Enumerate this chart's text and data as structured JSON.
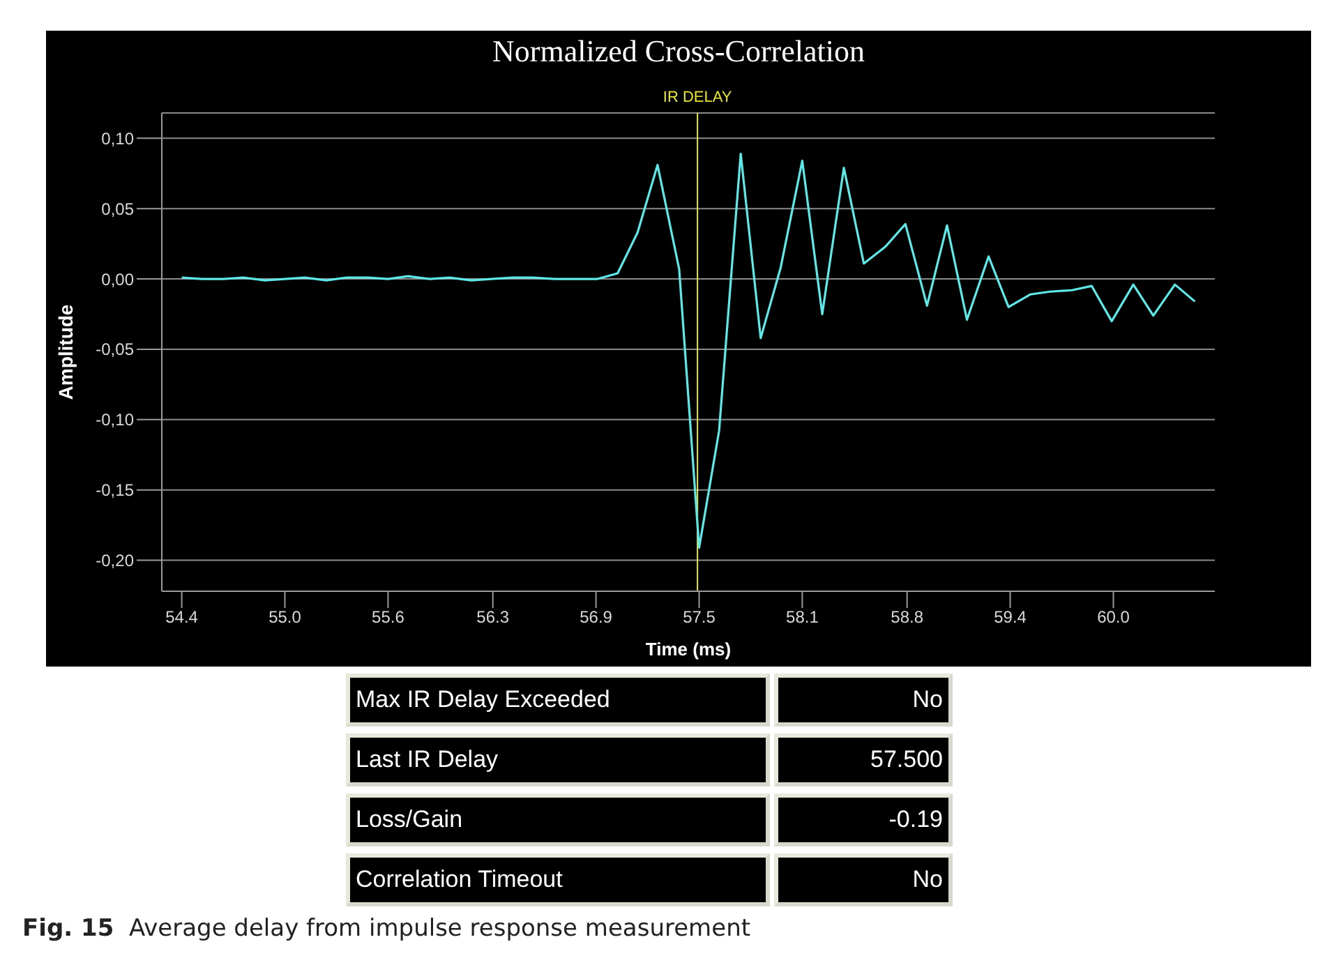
{
  "chart_data": {
    "type": "line",
    "title": "Normalized Cross-Correlation",
    "xlabel": "Time (ms)",
    "ylabel": "Amplitude",
    "x": [
      54.4,
      54.52,
      54.65,
      54.77,
      54.9,
      55.02,
      55.14,
      55.27,
      55.39,
      55.52,
      55.64,
      55.76,
      55.89,
      56.01,
      56.14,
      56.26,
      56.39,
      56.51,
      56.64,
      56.76,
      56.9,
      57.02,
      57.14,
      57.26,
      57.39,
      57.51,
      57.63,
      57.76,
      57.88,
      58.0,
      58.13,
      58.25,
      58.38,
      58.5,
      58.63,
      58.75,
      58.88,
      59.0,
      59.12,
      59.25,
      59.37,
      59.5,
      59.62,
      59.75,
      59.87,
      59.99,
      60.12,
      60.24,
      60.37,
      60.49
    ],
    "series": [
      {
        "color": "#5ee8e8",
        "values": [
          0.001,
          0,
          0,
          0.001,
          -0.001,
          0,
          0.001,
          -0.001,
          0.001,
          0.001,
          0,
          0.002,
          0,
          0.001,
          -0.001,
          0,
          0.001,
          0.001,
          0,
          0,
          0,
          0.004,
          0.033,
          0.081,
          0.007,
          -0.191,
          -0.108,
          0.089,
          -0.042,
          0.008,
          0.084,
          -0.025,
          0.079,
          0.011,
          0.023,
          0.039,
          -0.019,
          0.038,
          -0.029,
          0.016,
          -0.02,
          -0.011,
          -0.009,
          -0.008,
          -0.005,
          -0.03,
          -0.004,
          -0.026,
          -0.004,
          -0.016
        ]
      }
    ],
    "xlim": [
      54.28,
      60.61
    ],
    "xticks": [
      {
        "value": 54.4,
        "label": "54.4"
      },
      {
        "value": 55.02,
        "label": "55.0"
      },
      {
        "value": 55.64,
        "label": "55.6"
      },
      {
        "value": 56.27,
        "label": "56.3"
      },
      {
        "value": 56.89,
        "label": "56.9"
      },
      {
        "value": 57.51,
        "label": "57.5"
      },
      {
        "value": 58.13,
        "label": "58.1"
      },
      {
        "value": 58.76,
        "label": "58.8"
      },
      {
        "value": 59.38,
        "label": "59.4"
      },
      {
        "value": 60.0,
        "label": "60.0"
      }
    ],
    "ylim": [
      -0.222,
      0.118
    ],
    "yticks": [
      {
        "value": -0.2,
        "label": "-0,20"
      },
      {
        "value": -0.15,
        "label": "-0,15"
      },
      {
        "value": -0.1,
        "label": "-0,10"
      },
      {
        "value": -0.05,
        "label": "-0,05"
      },
      {
        "value": 0,
        "label": "0,00"
      },
      {
        "value": 0.05,
        "label": "0,05"
      },
      {
        "value": 0.1,
        "label": "0,10"
      }
    ],
    "grid": "y",
    "legend": false,
    "marker": "none",
    "line_style": "solid",
    "ref_lines": [
      {
        "axis": "x",
        "value": 57.5,
        "label": "IR DELAY",
        "color": "#e8e830"
      }
    ],
    "annotations": [
      "Max IR Delay Exceeded",
      "No",
      "Last IR Delay",
      "57.500",
      "Loss/Gain",
      "-0.19",
      "Correlation Timeout",
      "No",
      "Fig. 15  Average delay from impulse response measurement"
    ]
  }
}
